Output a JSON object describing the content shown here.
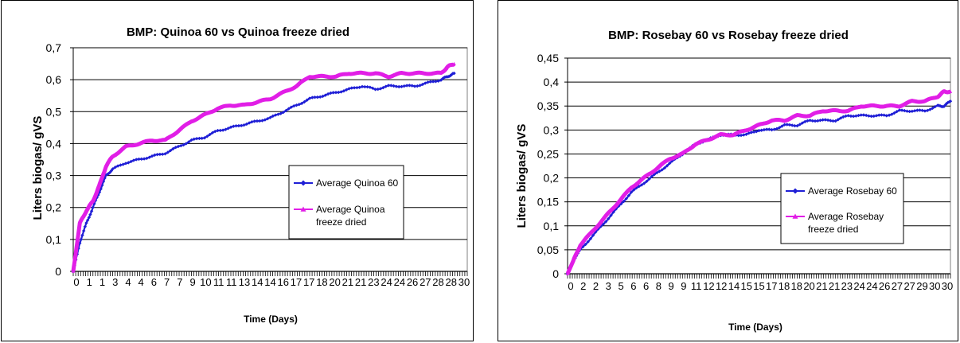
{
  "chart_data": [
    {
      "type": "line",
      "title": "BMP: Quinoa 60 vs Quinoa freeze  dried",
      "xlabel": "Time (Days)",
      "ylabel": "Liters biogas/ gVS",
      "x_tick_labels": [
        "0",
        "1",
        "1",
        "3",
        "4",
        "4",
        "6",
        "7",
        "7",
        "9",
        "10",
        "11",
        "11",
        "13",
        "14",
        "14",
        "16",
        "17",
        "17",
        "18",
        "20",
        "21",
        "21",
        "23",
        "24",
        "24",
        "26",
        "27",
        "28",
        "28",
        "30"
      ],
      "y_tick_labels": [
        "0",
        "0,1",
        "0,2",
        "0,3",
        "0,4",
        "0,5",
        "0,6",
        "0,7"
      ],
      "ylim": [
        0,
        0.7
      ],
      "xlim": [
        0,
        30
      ],
      "grid": "horizontal",
      "legend_position": "center-right",
      "series": [
        {
          "name": "Average Quinoa 60",
          "color": "#1f1fd6",
          "marker": "diamond",
          "x": [
            0,
            0.5,
            1,
            1.5,
            2,
            2.5,
            3,
            4,
            5,
            6,
            7,
            8,
            9,
            10,
            11,
            12,
            13,
            14,
            15,
            16,
            17,
            18,
            19,
            20,
            21,
            22,
            23,
            24,
            25,
            26,
            27,
            28,
            28.5,
            29
          ],
          "y": [
            0,
            0.09,
            0.15,
            0.2,
            0.25,
            0.3,
            0.32,
            0.34,
            0.35,
            0.36,
            0.37,
            0.39,
            0.41,
            0.42,
            0.44,
            0.45,
            0.46,
            0.47,
            0.48,
            0.5,
            0.52,
            0.54,
            0.55,
            0.56,
            0.57,
            0.58,
            0.57,
            0.58,
            0.58,
            0.58,
            0.59,
            0.6,
            0.61,
            0.62
          ]
        },
        {
          "name": "Average Quinoa freeze dried",
          "color": "#e11ee6",
          "marker": "triangle",
          "x": [
            0,
            0.5,
            1,
            1.5,
            2,
            2.5,
            3,
            4,
            5,
            6,
            7,
            8,
            9,
            10,
            11,
            12,
            13,
            14,
            15,
            16,
            17,
            18,
            19,
            20,
            21,
            22,
            23,
            24,
            25,
            26,
            27,
            28,
            28.5,
            29
          ],
          "y": [
            0,
            0.15,
            0.19,
            0.22,
            0.27,
            0.33,
            0.36,
            0.39,
            0.4,
            0.41,
            0.41,
            0.44,
            0.47,
            0.49,
            0.51,
            0.52,
            0.52,
            0.53,
            0.54,
            0.56,
            0.58,
            0.61,
            0.61,
            0.61,
            0.62,
            0.62,
            0.62,
            0.61,
            0.62,
            0.62,
            0.62,
            0.62,
            0.64,
            0.65
          ]
        }
      ]
    },
    {
      "type": "line",
      "title": "BMP: Rosebay 60 vs Rosebay freeze  dried",
      "xlabel": "Time (Days)",
      "ylabel": "Liters biogas/ gVS",
      "x_tick_labels": [
        "0",
        "2",
        "2",
        "3",
        "5",
        "6",
        "6",
        "8",
        "9",
        "9",
        "11",
        "12",
        "12",
        "14",
        "15",
        "15",
        "17",
        "18",
        "18",
        "20",
        "21",
        "21",
        "23",
        "24",
        "24",
        "26",
        "27",
        "27",
        "29",
        "30",
        "30"
      ],
      "y_tick_labels": [
        "0",
        "0,05",
        "0,1",
        "0,15",
        "0,2",
        "0,25",
        "0,3",
        "0,35",
        "0,4",
        "0,45"
      ],
      "ylim": [
        0,
        0.45
      ],
      "xlim": [
        0,
        30
      ],
      "grid": "horizontal",
      "legend_position": "center-right",
      "series": [
        {
          "name": "Average Rosebay 60",
          "color": "#1f1fd6",
          "marker": "diamond",
          "x": [
            0,
            0.5,
            1,
            2,
            3,
            4,
            5,
            6,
            7,
            8,
            9,
            10,
            11,
            12,
            13,
            14,
            15,
            16,
            17,
            18,
            19,
            20,
            21,
            22,
            23,
            24,
            25,
            26,
            27,
            28,
            29,
            29.5,
            30
          ],
          "y": [
            0,
            0.03,
            0.05,
            0.08,
            0.11,
            0.14,
            0.17,
            0.19,
            0.21,
            0.23,
            0.25,
            0.27,
            0.28,
            0.29,
            0.29,
            0.29,
            0.3,
            0.3,
            0.31,
            0.31,
            0.32,
            0.32,
            0.32,
            0.33,
            0.33,
            0.33,
            0.33,
            0.34,
            0.34,
            0.34,
            0.35,
            0.35,
            0.36
          ]
        },
        {
          "name": "Average Rosebay freeze dried",
          "color": "#e11ee6",
          "marker": "triangle",
          "x": [
            0,
            0.5,
            1,
            2,
            3,
            4,
            5,
            6,
            7,
            8,
            9,
            10,
            11,
            12,
            13,
            14,
            15,
            16,
            17,
            18,
            19,
            20,
            21,
            22,
            23,
            24,
            25,
            26,
            27,
            28,
            29,
            29.5,
            30
          ],
          "y": [
            0,
            0.03,
            0.06,
            0.09,
            0.12,
            0.15,
            0.18,
            0.2,
            0.22,
            0.24,
            0.25,
            0.27,
            0.28,
            0.29,
            0.29,
            0.3,
            0.31,
            0.32,
            0.32,
            0.33,
            0.33,
            0.34,
            0.34,
            0.34,
            0.35,
            0.35,
            0.35,
            0.35,
            0.36,
            0.36,
            0.37,
            0.38,
            0.38
          ]
        }
      ]
    }
  ]
}
